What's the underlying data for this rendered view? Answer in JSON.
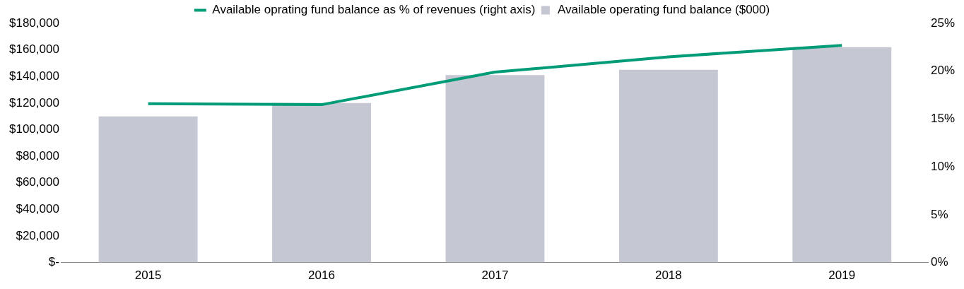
{
  "chart_data": {
    "type": "bar",
    "categories": [
      "2015",
      "2016",
      "2017",
      "2018",
      "2019"
    ],
    "series": [
      {
        "name": "Available operating fund balance ($000)",
        "color": "#c5c8d3",
        "values": [
          110000,
          120000,
          141000,
          145000,
          162000
        ]
      },
      {
        "name": "Available oprating fund balance as % of revenues (right axis)",
        "type": "line",
        "axis": "y2",
        "color": "#009b77",
        "values": [
          16.6,
          16.5,
          19.9,
          21.5,
          22.7
        ]
      }
    ],
    "ylim": [
      0,
      180000
    ],
    "yticks": [
      {
        "value": 0,
        "label": "$-"
      },
      {
        "value": 20000,
        "label": "$20,000"
      },
      {
        "value": 40000,
        "label": "$40,000"
      },
      {
        "value": 60000,
        "label": "$60,000"
      },
      {
        "value": 80000,
        "label": "$80,000"
      },
      {
        "value": 100000,
        "label": "$100,000"
      },
      {
        "value": 120000,
        "label": "$120,000"
      },
      {
        "value": 140000,
        "label": "$140,000"
      },
      {
        "value": 160000,
        "label": "$160,000"
      },
      {
        "value": 180000,
        "label": "$180,000"
      }
    ],
    "y2lim": [
      0,
      25
    ],
    "y2ticks": [
      {
        "value": 0,
        "label": "0%"
      },
      {
        "value": 5,
        "label": "5%"
      },
      {
        "value": 10,
        "label": "10%"
      },
      {
        "value": 15,
        "label": "15%"
      },
      {
        "value": 20,
        "label": "20%"
      },
      {
        "value": 25,
        "label": "25%"
      }
    ],
    "grid": false,
    "legend": "top",
    "marker": "none",
    "line_style": "solid"
  }
}
